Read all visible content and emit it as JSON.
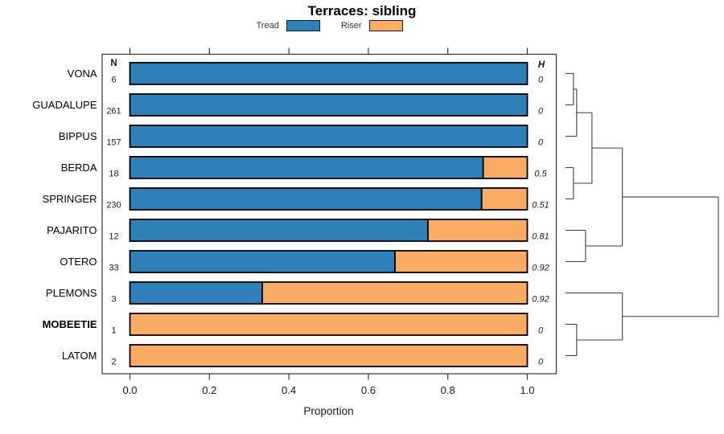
{
  "title": "Terraces: sibling",
  "columns": {
    "n_header": "N",
    "h_header": "H"
  },
  "chart_data": {
    "type": "bar",
    "orientation": "horizontal-stacked",
    "title": "Terraces: sibling",
    "xlabel": "Proportion",
    "xlim": [
      0,
      1
    ],
    "xticks": [
      "0.0",
      "0.2",
      "0.4",
      "0.6",
      "0.8",
      "1.0"
    ],
    "grid": false,
    "legend_position": "top",
    "categories": [
      "VONA",
      "GUADALUPE",
      "BIPPUS",
      "BERDA",
      "SPRINGER",
      "PAJARITO",
      "OTERO",
      "PLEMONS",
      "MOBEETIE",
      "LATOM"
    ],
    "bold_categories": [
      "MOBEETIE"
    ],
    "n_values": [
      6,
      261,
      157,
      18,
      230,
      12,
      33,
      3,
      1,
      2
    ],
    "h_values": [
      "0",
      "0",
      "0",
      "0.5",
      "0.51",
      "0.81",
      "0.92",
      "0.92",
      "0",
      "0"
    ],
    "series": [
      {
        "name": "Tread",
        "color": "#2E80B8",
        "values": [
          1,
          1,
          1,
          0.889,
          0.885,
          0.75,
          0.667,
          0.333,
          0,
          0
        ]
      },
      {
        "name": "Riser",
        "color": "#FAAC64",
        "values": [
          0,
          0,
          0,
          0.111,
          0.115,
          0.25,
          0.333,
          0.667,
          1,
          1
        ]
      }
    ],
    "dendrogram": {
      "side": "right",
      "merges": [
        {
          "a": "L0",
          "b": "L1",
          "h": 0.052
        },
        {
          "a": "M0",
          "b": "L2",
          "h": 0.073
        },
        {
          "a": "L3",
          "b": "L4",
          "h": 0.052
        },
        {
          "a": "M1",
          "b": "M2",
          "h": 0.173
        },
        {
          "a": "L5",
          "b": "L6",
          "h": 0.131
        },
        {
          "a": "M3",
          "b": "M4",
          "h": 0.372
        },
        {
          "a": "L8",
          "b": "L9",
          "h": 0.073
        },
        {
          "a": "L7",
          "b": "M6",
          "h": 0.372
        },
        {
          "a": "M5",
          "b": "M7",
          "h": 1.0
        }
      ]
    }
  }
}
